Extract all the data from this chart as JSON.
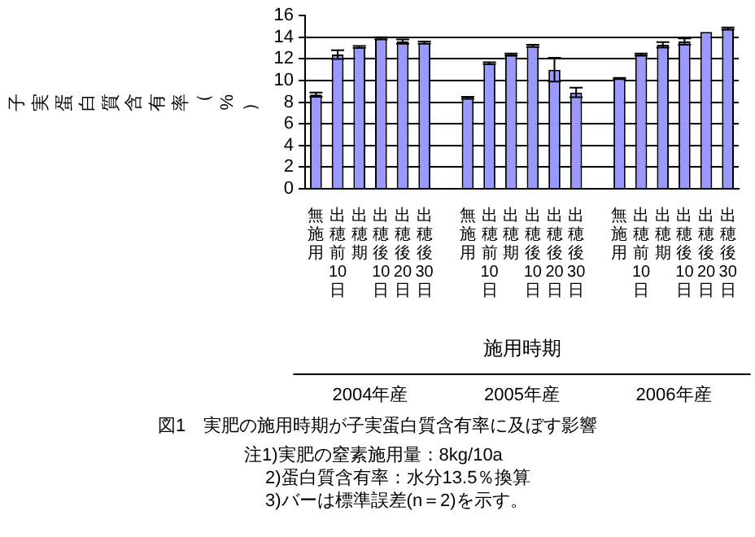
{
  "chart_data": {
    "type": "bar",
    "ylabel": "子実蛋白質含有率（%）",
    "xlabel": "施用時期",
    "title": "図1　実肥の施用時期が子実蛋白質含有率に及ぼす影響",
    "categories": [
      "無施用",
      "出穂前10日",
      "出穂期",
      "出穂後10日",
      "出穂後20日",
      "出穂後30日",
      null,
      "無施用",
      "出穂前10日",
      "出穂期",
      "出穂後10日",
      "出穂後20日",
      "出穂後30日",
      null,
      "無施用",
      "出穂前10日",
      "出穂期",
      "出穂後10日",
      "出穂後20日",
      "出穂後30日"
    ],
    "values": [
      8.7,
      12.4,
      13.1,
      13.9,
      13.6,
      13.5,
      null,
      8.4,
      11.6,
      12.4,
      13.2,
      11.0,
      8.9,
      null,
      10.2,
      12.4,
      13.3,
      13.6,
      14.5,
      14.8
    ],
    "errors": [
      0.2,
      0.4,
      0.1,
      0.1,
      0.2,
      0.1,
      null,
      0.1,
      0.1,
      0.1,
      0.1,
      1.1,
      0.45,
      null,
      0.05,
      0.1,
      0.25,
      0.3,
      null,
      0.1
    ],
    "color": "#9999ff",
    "ylim": [
      0,
      16
    ],
    "yticks": [
      0,
      2,
      4,
      6,
      8,
      10,
      12,
      14,
      16
    ],
    "grid": "y",
    "annotations": [
      "2004年産",
      "2005年産",
      "2006年産",
      "注1)実肥の窒素施用量：8kg/10a",
      "2)蛋白質含有率：水分13.5％換算",
      "3)バーは標準誤差(n＝2)を示す。"
    ]
  }
}
